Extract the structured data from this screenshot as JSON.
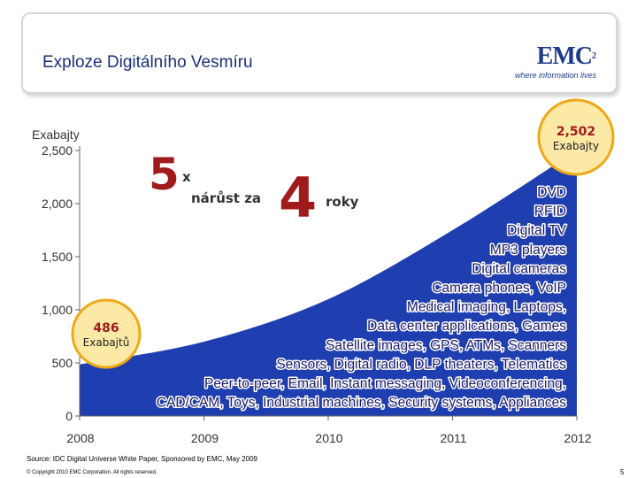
{
  "slide": {
    "title": "Exploze Digitálního Vesmíru",
    "source": "Source: IDC Digital Universe White Paper, Sponsored by EMC, May 2009",
    "copyright": "© Copyright 2010 EMC Corporation. All rights reserved.",
    "page_number": "5"
  },
  "logo": {
    "mark": "EMC",
    "superscript": "2",
    "tagline": "where information lives"
  },
  "chart_data": {
    "type": "area",
    "title": "",
    "ylabel": "Exabajty",
    "xlabel": "",
    "x": [
      2008,
      2009,
      2010,
      2011,
      2012
    ],
    "values": [
      486,
      700,
      1100,
      1750,
      2502
    ],
    "xlim": [
      2008,
      2012
    ],
    "ylim": [
      0,
      2500
    ],
    "y_ticks": [
      "0",
      "500",
      "1,000",
      "1,500",
      "2,000",
      "2,500"
    ],
    "x_ticks": [
      "2008",
      "2009",
      "2010",
      "2011",
      "2012"
    ],
    "grid": false,
    "colors": {
      "area": "#1f3fb0",
      "badge_fill": "#fce9a6",
      "badge_ring": "#f0a818",
      "accent": "#a01c1c"
    },
    "callouts": {
      "start": {
        "value": "486",
        "unit": "Exabajtů"
      },
      "end": {
        "value": "2,502",
        "unit": "Exabajty"
      }
    },
    "headline": {
      "factor": "5",
      "times": "x",
      "middle": "nárůst za",
      "years": "4",
      "unit": "roky"
    },
    "applications": [
      "DVD",
      "RFID",
      "Digital TV",
      "MP3 players",
      "Digital cameras",
      "Camera phones, VoIP",
      "Medical imaging, Laptops,",
      "Data center applications, Games",
      "Satellite images, GPS, ATMs, Scanners",
      "Sensors, Digital radio, DLP theaters, Telematics",
      "Peer-to-peer, Email, Instant messaging, Videoconferencing,",
      "CAD/CAM, Toys, Industrial machines, Security systems, Appliances"
    ]
  }
}
